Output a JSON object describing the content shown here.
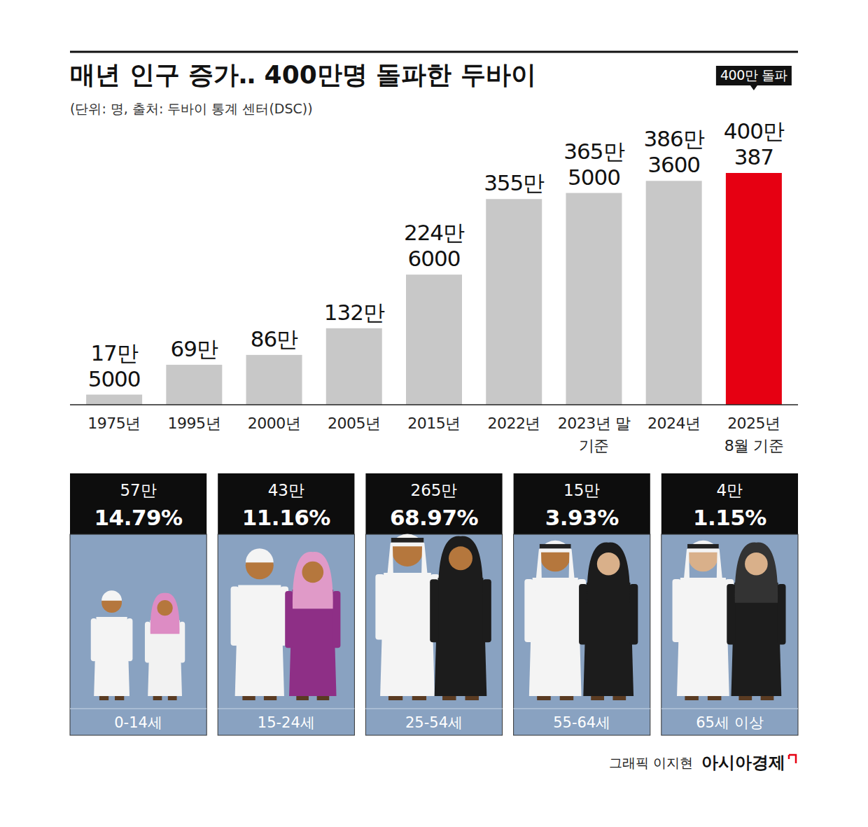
{
  "chart_data": [
    {
      "type": "bar",
      "title": "매년 인구 증가‥ 400만명 돌파한 두바이",
      "subtitle": "(단위: 명, 출처: 두바이 통계 센터(DSC))",
      "categories": [
        "1975년",
        "1995년",
        "2000년",
        "2005년",
        "2015년",
        "2022년",
        "2023년 말\n기준",
        "2024년",
        "2025년\n8월 기준"
      ],
      "values": [
        175000,
        690000,
        860000,
        1320000,
        2246000,
        3550000,
        3655000,
        3863600,
        4000387
      ],
      "value_labels": [
        "17만\n5000",
        "69만",
        "86만",
        "132만",
        "224만\n6000",
        "355만",
        "365만\n5000",
        "386만\n3600",
        "400만\n387"
      ],
      "colors": [
        "#c8c8c8",
        "#c8c8c8",
        "#c8c8c8",
        "#c8c8c8",
        "#c8c8c8",
        "#c8c8c8",
        "#c8c8c8",
        "#c8c8c8",
        "#e60012"
      ],
      "ylim": [
        0,
        4000387
      ],
      "data_labels": true,
      "tick_labels": "x",
      "annotation": "400만 돌파"
    },
    {
      "type": "pictogram",
      "categories": [
        "0-14세",
        "15-24세",
        "25-54세",
        "55-64세",
        "65세 이상"
      ],
      "values": [
        14.79,
        11.16,
        68.97,
        3.93,
        1.15
      ],
      "value_labels": [
        "14.79%",
        "11.16%",
        "68.97%",
        "3.93%",
        "1.15%"
      ],
      "population": [
        570000,
        430000,
        2650000,
        150000,
        40000
      ],
      "population_labels": [
        "57만",
        "43만",
        "265만",
        "15만",
        "4만"
      ]
    }
  ],
  "credit": {
    "graphic": "그래픽 이지현",
    "publisher": "아시아경제"
  }
}
